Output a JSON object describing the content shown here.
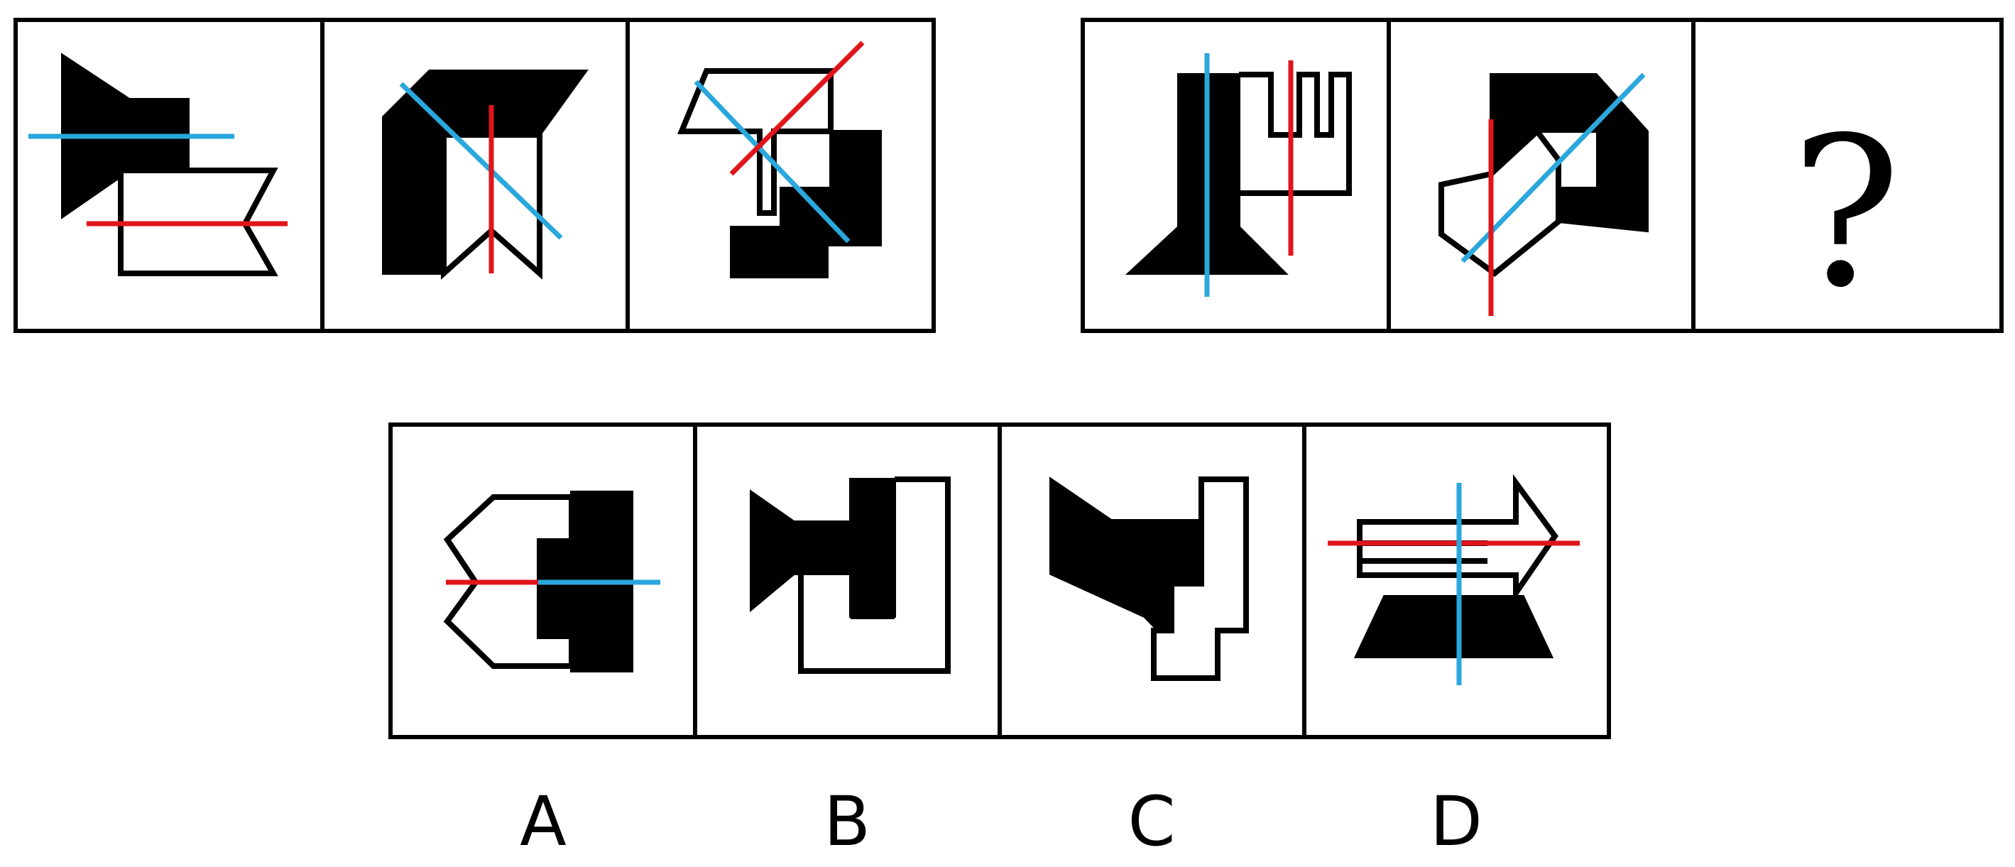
{
  "question": {
    "symbol": "?"
  },
  "options": [
    {
      "label": "A"
    },
    {
      "label": "B"
    },
    {
      "label": "C"
    },
    {
      "label": "D"
    }
  ],
  "colors": {
    "axis_a": "#2aa7dc",
    "axis_b": "#e0151b",
    "fill": "#000000",
    "background": "#ffffff"
  }
}
